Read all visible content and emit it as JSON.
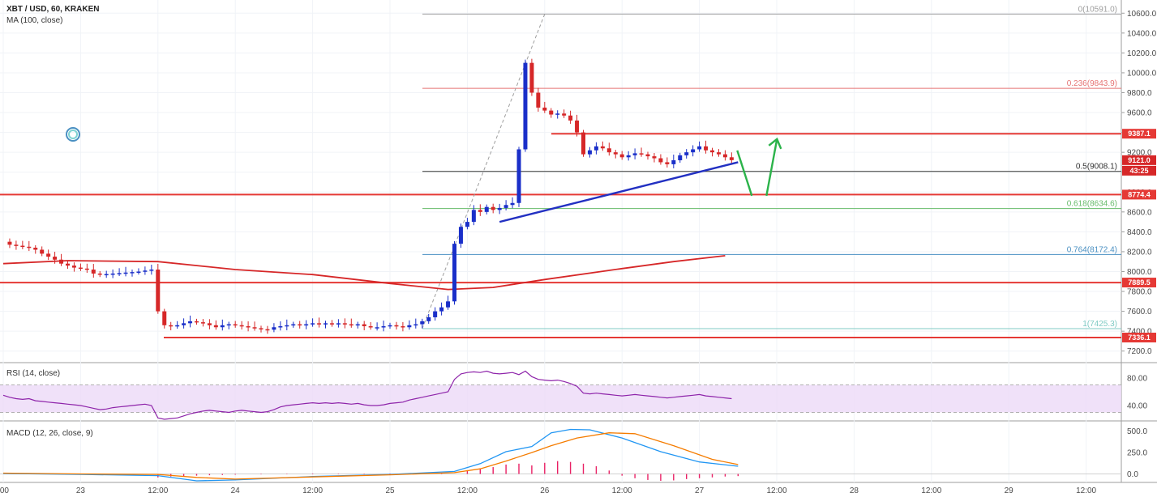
{
  "header": {
    "symbol": "XBT / USD, 60, KRAKEN",
    "indicator": "MA (100, close)"
  },
  "rsi": {
    "title": "RSI (14, close)",
    "levels": [
      "80.00",
      "40.00"
    ]
  },
  "macd": {
    "title": "MACD (12, 26, close, 9)",
    "levels": [
      "500.0",
      "250.0",
      "0.0"
    ]
  },
  "colors": {
    "up": "#1a2fc9",
    "down": "#d62728",
    "ma": "#d62728",
    "support": "#e53935",
    "trend": "#2230c2",
    "arrow": "#2bb34a",
    "rsi_line": "#8e24aa",
    "rsi_band": "#ecd9f7",
    "macd_line": "#2196f3",
    "signal_line": "#f57c00",
    "hist": "#e91e63"
  },
  "chart_data": {
    "type": "line",
    "title": "XBT / USD, 60, KRAKEN",
    "y_range": [
      7100,
      10700
    ],
    "y_ticks": [
      7200,
      7400,
      7600,
      7800,
      8000,
      8200,
      8400,
      8600,
      8800,
      9000,
      9200,
      9400,
      9600,
      9800,
      10000,
      10200,
      10400,
      10600
    ],
    "y_tick_labels": [
      "7200.0",
      "7400.0",
      "7600.0",
      "7800.0",
      "8000.0",
      "8200.0",
      "8400.0",
      "8600.0",
      "8800.0",
      "9000.0",
      "9200.0",
      "9400.0",
      "9600.0",
      "9800.0",
      "10000.0",
      "10200.0",
      "10400.0",
      "10600.0"
    ],
    "x_ticks": [
      {
        "label": ":00",
        "t": 0
      },
      {
        "label": "23",
        "t": 12
      },
      {
        "label": "12:00",
        "t": 24
      },
      {
        "label": "24",
        "t": 36
      },
      {
        "label": "12:00",
        "t": 48
      },
      {
        "label": "25",
        "t": 60
      },
      {
        "label": "12:00",
        "t": 72
      },
      {
        "label": "26",
        "t": 84
      },
      {
        "label": "12:00",
        "t": 96
      },
      {
        "label": "27",
        "t": 108
      },
      {
        "label": "12:00",
        "t": 120
      },
      {
        "label": "28",
        "t": 132
      },
      {
        "label": "12:00",
        "t": 144
      },
      {
        "label": "29",
        "t": 156
      },
      {
        "label": "12:00",
        "t": 168
      }
    ],
    "price_series": [
      8300,
      8270,
      8260,
      8250,
      8240,
      8220,
      8180,
      8150,
      8120,
      8080,
      8060,
      8040,
      8030,
      8020,
      7980,
      7970,
      7975,
      7980,
      7985,
      7990,
      7995,
      8000,
      8010,
      8020,
      7600,
      7460,
      7450,
      7460,
      7480,
      7500,
      7490,
      7480,
      7460,
      7440,
      7460,
      7470,
      7460,
      7450,
      7440,
      7430,
      7420,
      7415,
      7440,
      7450,
      7460,
      7470,
      7460,
      7470,
      7480,
      7470,
      7480,
      7470,
      7480,
      7470,
      7460,
      7470,
      7450,
      7440,
      7440,
      7450,
      7460,
      7450,
      7440,
      7460,
      7470,
      7500,
      7540,
      7600,
      7640,
      7700,
      8280,
      8450,
      8500,
      8620,
      8600,
      8650,
      8620,
      8640,
      8670,
      8690,
      9230,
      10100,
      9800,
      9650,
      9620,
      9580,
      9590,
      9570,
      9520,
      9400,
      9180,
      9220,
      9260,
      9240,
      9200,
      9180,
      9150,
      9170,
      9190,
      9180,
      9160,
      9140,
      9100,
      9080,
      9120,
      9170,
      9200,
      9230,
      9260,
      9220,
      9200,
      9180,
      9150,
      9121
    ],
    "ma100": [
      [
        0,
        8080
      ],
      [
        10,
        8110
      ],
      [
        24,
        8100
      ],
      [
        36,
        8020
      ],
      [
        48,
        7970
      ],
      [
        60,
        7880
      ],
      [
        69,
        7820
      ],
      [
        76,
        7840
      ],
      [
        84,
        7920
      ],
      [
        96,
        8030
      ],
      [
        104,
        8100
      ],
      [
        112,
        8160
      ]
    ],
    "fib_levels": [
      {
        "label": "0(10591.0)",
        "value": 10591.0
      },
      {
        "label": "0.236(9843.9)",
        "value": 9843.9
      },
      {
        "label": "0.5(9008.1)",
        "value": 9008.1
      },
      {
        "label": "0.618(8634.6)",
        "value": 8634.6
      },
      {
        "label": "0.764(8172.4)",
        "value": 8172.4
      },
      {
        "label": "1(7425.3)",
        "value": 7425.3
      }
    ],
    "horizontal_levels": [
      {
        "label": "9387.1",
        "value": 9387.1
      },
      {
        "label": "8774.4",
        "value": 8774.4
      },
      {
        "label": "7889.5",
        "value": 7889.5
      },
      {
        "label": "7336.1",
        "value": 7336.1
      }
    ],
    "price_tags": [
      {
        "label": "9121.0",
        "value": 9121.0
      },
      {
        "label": "43:25",
        "value": 9010
      }
    ],
    "trendline": [
      [
        77,
        8500
      ],
      [
        114,
        9100
      ]
    ],
    "fib_diagonal": [
      [
        65,
        7425.3
      ],
      [
        84,
        10591.0
      ]
    ],
    "rsi": {
      "range": [
        20,
        100
      ],
      "band": [
        30,
        70
      ],
      "values": [
        55,
        52,
        50,
        49,
        50,
        47,
        46,
        45,
        44,
        43,
        42,
        41,
        40,
        38,
        36,
        34,
        35,
        37,
        38,
        39,
        40,
        41,
        42,
        40,
        22,
        20,
        21,
        22,
        25,
        28,
        30,
        32,
        33,
        32,
        31,
        30,
        32,
        33,
        32,
        31,
        30,
        31,
        34,
        38,
        40,
        41,
        42,
        43,
        44,
        43,
        44,
        43,
        44,
        43,
        42,
        43,
        41,
        40,
        40,
        41,
        43,
        44,
        45,
        48,
        50,
        52,
        54,
        56,
        58,
        60,
        78,
        86,
        88,
        89,
        88,
        90,
        87,
        86,
        87,
        88,
        85,
        90,
        82,
        78,
        77,
        76,
        77,
        75,
        72,
        68,
        58,
        57,
        58,
        57,
        56,
        55,
        54,
        55,
        56,
        55,
        54,
        53,
        52,
        51,
        52,
        53,
        54,
        55,
        56,
        54,
        53,
        52,
        51,
        50
      ]
    },
    "macd": {
      "range": [
        -80,
        600
      ],
      "macd": [
        [
          0,
          5
        ],
        [
          12,
          -5
        ],
        [
          24,
          -20
        ],
        [
          30,
          -80
        ],
        [
          36,
          -70
        ],
        [
          48,
          -30
        ],
        [
          60,
          -5
        ],
        [
          70,
          30
        ],
        [
          74,
          120
        ],
        [
          78,
          260
        ],
        [
          82,
          320
        ],
        [
          85,
          480
        ],
        [
          88,
          520
        ],
        [
          91,
          515
        ],
        [
          96,
          420
        ],
        [
          102,
          260
        ],
        [
          108,
          140
        ],
        [
          114,
          90
        ]
      ],
      "signal": [
        [
          0,
          10
        ],
        [
          12,
          0
        ],
        [
          24,
          -5
        ],
        [
          30,
          -40
        ],
        [
          36,
          -60
        ],
        [
          48,
          -35
        ],
        [
          60,
          -10
        ],
        [
          70,
          15
        ],
        [
          74,
          60
        ],
        [
          78,
          150
        ],
        [
          82,
          250
        ],
        [
          85,
          330
        ],
        [
          89,
          420
        ],
        [
          94,
          480
        ],
        [
          98,
          470
        ],
        [
          104,
          330
        ],
        [
          110,
          170
        ],
        [
          114,
          110
        ]
      ],
      "hist": [
        [
          24,
          -40
        ],
        [
          26,
          -30
        ],
        [
          28,
          -25
        ],
        [
          30,
          -20
        ],
        [
          32,
          -15
        ],
        [
          34,
          -12
        ],
        [
          36,
          -8
        ],
        [
          40,
          -5
        ],
        [
          44,
          4
        ],
        [
          48,
          6
        ],
        [
          52,
          5
        ],
        [
          56,
          5
        ],
        [
          60,
          4
        ],
        [
          64,
          5
        ],
        [
          68,
          6
        ],
        [
          72,
          40
        ],
        [
          74,
          60
        ],
        [
          76,
          80
        ],
        [
          78,
          110
        ],
        [
          80,
          120
        ],
        [
          82,
          100
        ],
        [
          84,
          130
        ],
        [
          86,
          150
        ],
        [
          88,
          140
        ],
        [
          90,
          120
        ],
        [
          92,
          90
        ],
        [
          94,
          40
        ],
        [
          96,
          -20
        ],
        [
          98,
          -50
        ],
        [
          100,
          -70
        ],
        [
          102,
          -80
        ],
        [
          104,
          -75
        ],
        [
          106,
          -60
        ],
        [
          108,
          -50
        ],
        [
          110,
          -40
        ],
        [
          112,
          -30
        ],
        [
          114,
          -25
        ]
      ]
    }
  }
}
